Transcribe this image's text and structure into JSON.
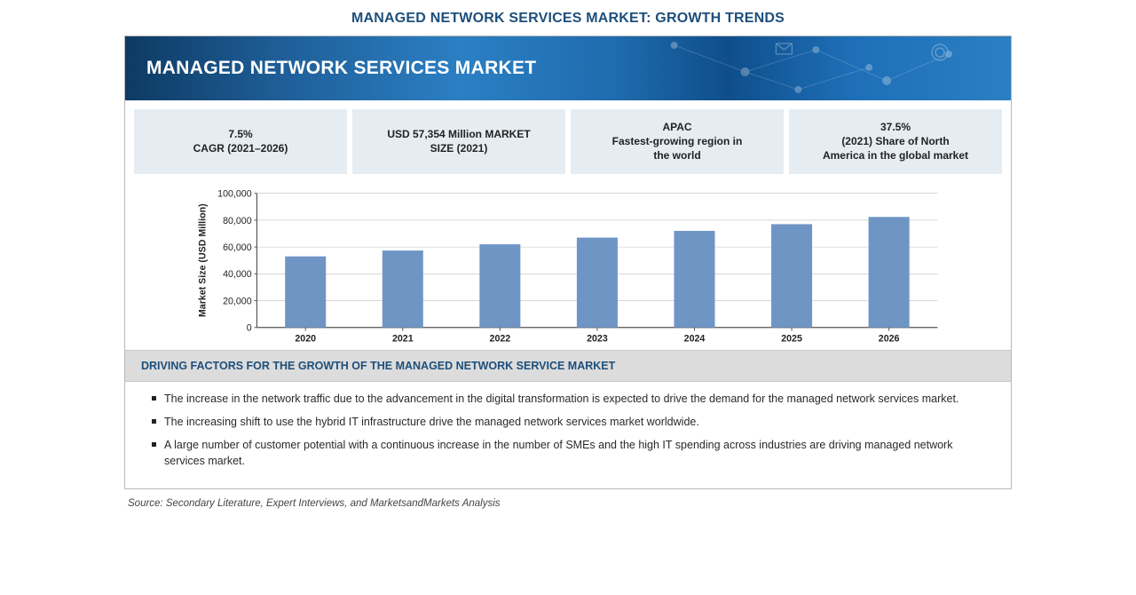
{
  "page": {
    "title": "MANAGED NETWORK SERVICES MARKET: GROWTH TRENDS",
    "banner_title": "MANAGED NETWORK SERVICES MARKET",
    "source": "Source: Secondary Literature, Expert Interviews, and MarketsandMarkets Analysis"
  },
  "stats": [
    {
      "line1": "7.5%",
      "line2": "CAGR (2021–2026)"
    },
    {
      "line1": "USD 57,354 Million MARKET",
      "line2": "SIZE (2021)"
    },
    {
      "line1": "APAC",
      "line2": "Fastest-growing region in",
      "line3": "the world"
    },
    {
      "line1": "37.5%",
      "line2": "(2021) Share of North",
      "line3": "America in the global market"
    }
  ],
  "chart": {
    "type": "bar",
    "ylabel": "Market Size (USD Million)",
    "categories": [
      "2020",
      "2021",
      "2022",
      "2023",
      "2024",
      "2025",
      "2026"
    ],
    "values": [
      53000,
      57354,
      62000,
      67000,
      72000,
      77000,
      82400
    ],
    "bar_color": "#6f95c5",
    "background_color": "#ffffff",
    "grid_color": "#bfbfbf",
    "axis_color": "#555555",
    "ylim": [
      0,
      100000
    ],
    "ytick_step": 20000,
    "yticks": [
      "0",
      "20,000",
      "40,000",
      "60,000",
      "80,000",
      "100,000"
    ],
    "label_fontsize": 11,
    "bar_width_ratio": 0.42
  },
  "drivers": {
    "header": "DRIVING FACTORS FOR THE GROWTH OF THE MANAGED NETWORK SERVICE MARKET",
    "items": [
      "The increase in the network traffic due to the advancement in the digital transformation is expected to drive the demand for the managed network services market.",
      "The increasing shift to use the hybrid IT infrastructure drive the managed network services market worldwide.",
      "A large number of customer potential with a continuous increase in the number of SMEs and the high IT spending across industries are driving managed network services market."
    ]
  },
  "colors": {
    "title_color": "#1d4f7b",
    "stat_bg": "#e6edf2",
    "drivers_header_bg": "#dcdcdc"
  }
}
